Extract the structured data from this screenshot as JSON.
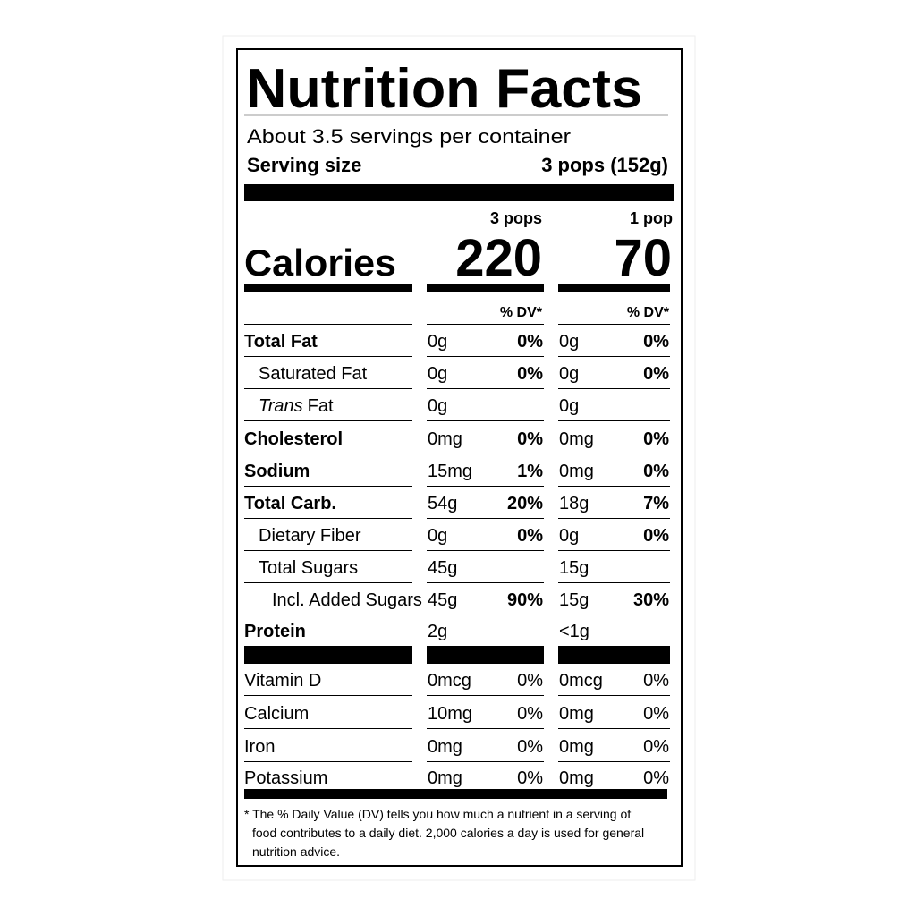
{
  "title": "Nutrition Facts",
  "servings": "About 3.5 servings per container",
  "serving_size": {
    "label": "Serving size",
    "value": "3 pops (152g)"
  },
  "columns": [
    "3 pops",
    "1 pop"
  ],
  "calories": {
    "label": "Calories",
    "values": [
      "220",
      "70"
    ]
  },
  "dv_header": [
    "% DV*",
    "% DV*"
  ],
  "nutrients": [
    {
      "name": "Total Fat",
      "bold": true,
      "indent": 0,
      "cells": [
        [
          "0g",
          "0%"
        ],
        [
          "0g",
          "0%"
        ]
      ]
    },
    {
      "name": "Saturated Fat",
      "bold": false,
      "indent": 1,
      "cells": [
        [
          "0g",
          "0%"
        ],
        [
          "0g",
          "0%"
        ]
      ]
    },
    {
      "name_italic": "Trans",
      "name": "Fat",
      "bold": false,
      "indent": 1,
      "cells": [
        [
          "0g",
          null
        ],
        [
          "0g",
          null
        ]
      ]
    },
    {
      "name": "Cholesterol",
      "bold": true,
      "indent": 0,
      "cells": [
        [
          "0mg",
          "0%"
        ],
        [
          "0mg",
          "0%"
        ]
      ]
    },
    {
      "name": "Sodium",
      "bold": true,
      "indent": 0,
      "cells": [
        [
          "15mg",
          "1%"
        ],
        [
          "0mg",
          "0%"
        ]
      ]
    },
    {
      "name": "Total Carb.",
      "bold": true,
      "indent": 0,
      "cells": [
        [
          "54g",
          "20%"
        ],
        [
          "18g",
          "7%"
        ]
      ]
    },
    {
      "name": "Dietary Fiber",
      "bold": false,
      "indent": 1,
      "cells": [
        [
          "0g",
          "0%"
        ],
        [
          "0g",
          "0%"
        ]
      ]
    },
    {
      "name": "Total Sugars",
      "bold": false,
      "indent": 1,
      "cells": [
        [
          "45g",
          null
        ],
        [
          "15g",
          null
        ]
      ]
    },
    {
      "name": "Incl. Added Sugars",
      "bold": false,
      "indent": 2,
      "cells": [
        [
          "45g",
          "90%"
        ],
        [
          "15g",
          "30%"
        ]
      ]
    },
    {
      "name": "Protein",
      "bold": true,
      "indent": 0,
      "cells": [
        [
          "2g",
          null
        ],
        [
          "<1g",
          null
        ]
      ]
    }
  ],
  "vitamins": [
    {
      "name": "Vitamin D",
      "cells": [
        [
          "0mcg",
          "0%"
        ],
        [
          "0mcg",
          "0%"
        ]
      ]
    },
    {
      "name": "Calcium",
      "cells": [
        [
          "10mg",
          "0%"
        ],
        [
          "0mg",
          "0%"
        ]
      ]
    },
    {
      "name": "Iron",
      "cells": [
        [
          "0mg",
          "0%"
        ],
        [
          "0mg",
          "0%"
        ]
      ]
    },
    {
      "name": "Potassium",
      "cells": [
        [
          "0mg",
          "0%"
        ],
        [
          "0mg",
          "0%"
        ]
      ]
    }
  ],
  "footnote": [
    "* The % Daily Value (DV) tells you how much a nutrient in a serving of",
    "food contributes to a daily diet. 2,000 calories a day is used for general",
    "nutrition advice."
  ]
}
